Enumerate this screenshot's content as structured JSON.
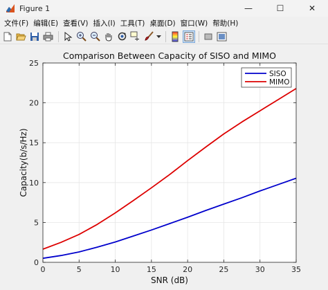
{
  "window": {
    "title": "Figure 1",
    "minimize_glyph": "—",
    "maximize_glyph": "☐",
    "close_glyph": "✕"
  },
  "menu": {
    "items": [
      "文件(F)",
      "编辑(E)",
      "查看(V)",
      "插入(I)",
      "工具(T)",
      "桌面(D)",
      "窗口(W)",
      "帮助(H)"
    ]
  },
  "toolbar": {
    "icons": [
      "new-figure-icon",
      "open-file-icon",
      "save-icon",
      "print-icon",
      "pointer-icon",
      "zoom-in-icon",
      "zoom-out-icon",
      "pan-icon",
      "rotate-icon",
      "data-cursor-icon",
      "brush-icon",
      "colorbar-icon",
      "legend-icon",
      "hide-plot-tools-icon",
      "show-plot-tools-icon"
    ]
  },
  "colors": {
    "siso": "#0000cc",
    "mimo": "#dd0000",
    "axes_bg": "#ffffff",
    "grid": "#e6e6e6"
  },
  "chart_data": {
    "type": "line",
    "title": "Comparison Between Capacity of SISO and MIMO",
    "xlabel": "SNR (dB)",
    "ylabel": "Capacity(b/s/Hz)",
    "xlim": [
      0,
      35
    ],
    "ylim": [
      0,
      25
    ],
    "xticks": [
      0,
      5,
      10,
      15,
      20,
      25,
      30,
      35
    ],
    "yticks": [
      0,
      5,
      10,
      15,
      20,
      25
    ],
    "grid": true,
    "legend_position": "top-right",
    "x": [
      0,
      2.5,
      5,
      7.5,
      10,
      12.5,
      15,
      17.5,
      20,
      22.5,
      25,
      27.5,
      30,
      32.5,
      35
    ],
    "series": [
      {
        "name": "SISO",
        "color": "#0000cc",
        "values": [
          0.5,
          0.85,
          1.3,
          1.9,
          2.55,
          3.3,
          4.05,
          4.85,
          5.65,
          6.5,
          7.3,
          8.1,
          8.95,
          9.75,
          10.55
        ]
      },
      {
        "name": "MIMO",
        "color": "#dd0000",
        "values": [
          1.65,
          2.5,
          3.5,
          4.75,
          6.2,
          7.75,
          9.35,
          11.0,
          12.75,
          14.45,
          16.1,
          17.6,
          19.0,
          20.4,
          21.8
        ]
      }
    ]
  }
}
